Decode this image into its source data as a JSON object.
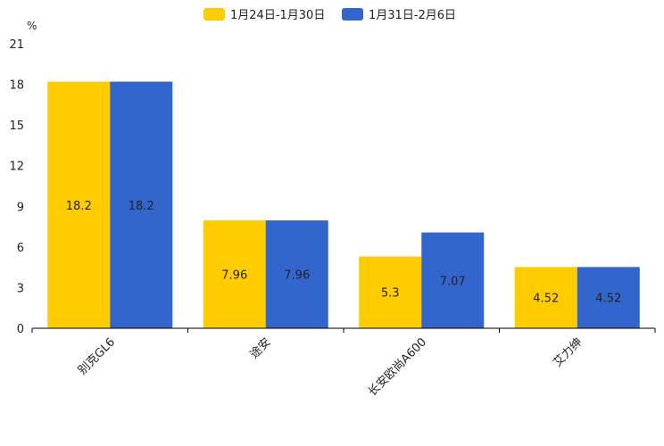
{
  "chart_data": {
    "type": "bar",
    "title": "",
    "ylabel": "%",
    "xlabel": "",
    "ylim": [
      0,
      21
    ],
    "yticks": [
      0,
      3,
      6,
      9,
      12,
      15,
      18,
      21
    ],
    "categories": [
      "别克GL6",
      "途安",
      "长安欧尚A600",
      "艾力绅"
    ],
    "legend_position": "top-center",
    "series": [
      {
        "name": "1月24日-1月30日",
        "color": "#FFCC00",
        "values": [
          18.2,
          7.96,
          5.3,
          4.52
        ]
      },
      {
        "name": "1月31日-2月6日",
        "color": "#3366CC",
        "values": [
          18.2,
          7.96,
          7.07,
          4.52
        ]
      }
    ]
  }
}
